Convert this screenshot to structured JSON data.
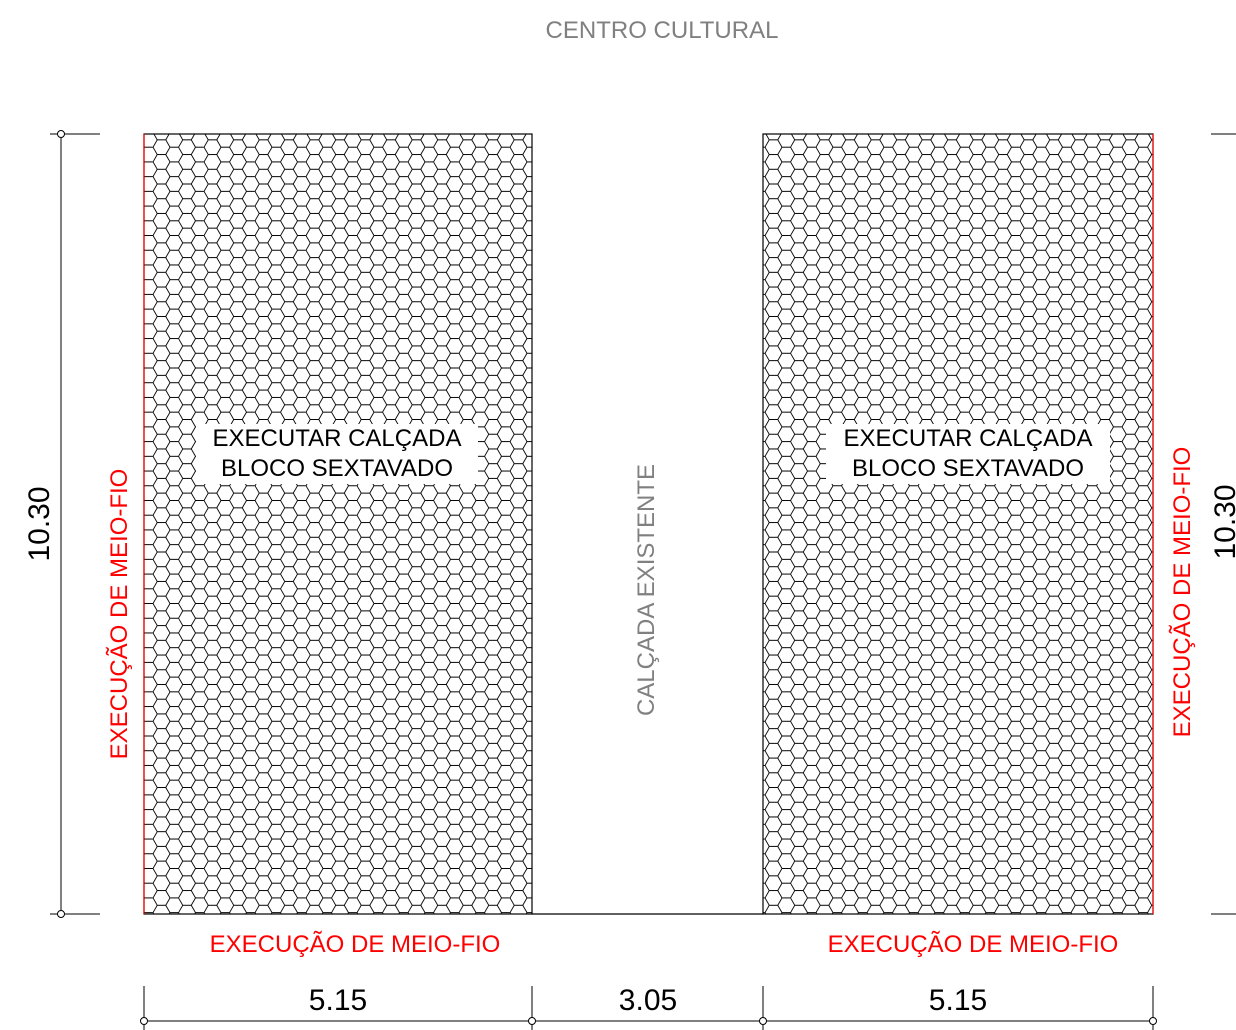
{
  "header": {
    "building_label": "CENTRO CULTURAL"
  },
  "left_area": {
    "label_line1": "EXECUTAR CALÇADA",
    "label_line2": "BLOCO SEXTAVADO",
    "curb_side_label": "EXECUÇÃO DE MEIO-FIO",
    "curb_bottom_label": "EXECUÇÃO DE MEIO-FIO"
  },
  "middle_area": {
    "label": "CALÇADA EXISTENTE"
  },
  "right_area": {
    "label_line1": "EXECUTAR CALÇADA",
    "label_line2": "BLOCO SEXTAVADO",
    "curb_side_label": "EXECUÇÃO DE MEIO-FIO",
    "curb_bottom_label": "EXECUÇÃO DE MEIO-FIO"
  },
  "dimensions": {
    "left_height": "10.30",
    "right_height": "10.30",
    "left_width": "5.15",
    "middle_width": "3.05",
    "right_width": "5.15"
  },
  "colors": {
    "curb": "#ff0000",
    "existing_text": "#808080",
    "lines": "#000000"
  }
}
